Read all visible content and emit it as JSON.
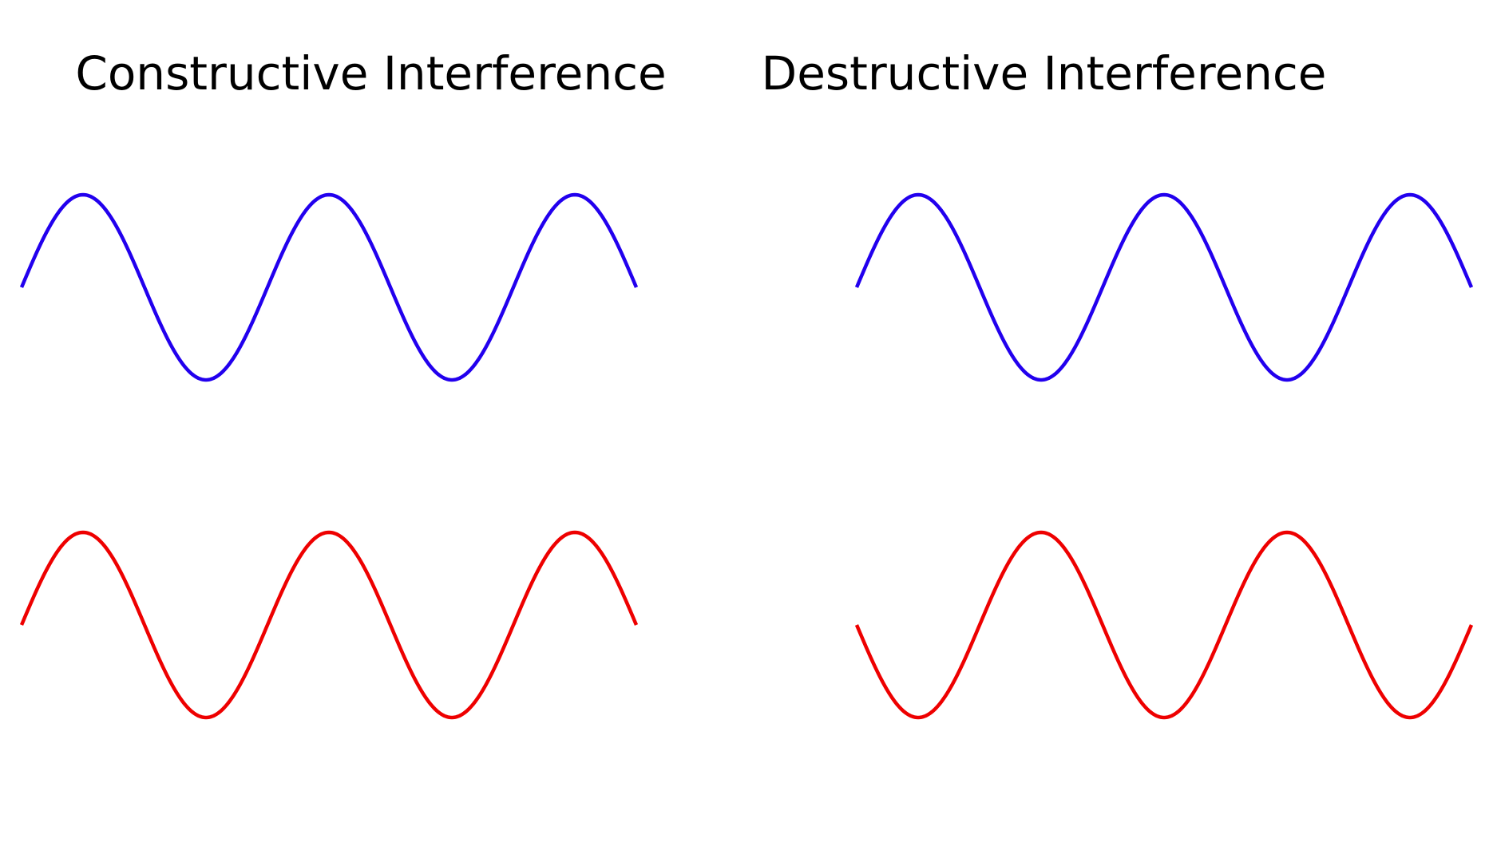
{
  "panels": [
    {
      "title": "Constructive Interference",
      "waves": [
        {
          "role": "wave-1",
          "color": "#2200ee",
          "phase": "in-phase",
          "cycles": 2.5
        },
        {
          "role": "wave-2",
          "color": "#ee0000",
          "phase": "in-phase",
          "cycles": 2.5
        }
      ]
    },
    {
      "title": "Destructive Interference",
      "waves": [
        {
          "role": "wave-1",
          "color": "#2200ee",
          "phase": "in-phase",
          "cycles": 2.5
        },
        {
          "role": "wave-2",
          "color": "#ee0000",
          "phase": "inverted",
          "cycles": 2.5
        }
      ]
    }
  ]
}
